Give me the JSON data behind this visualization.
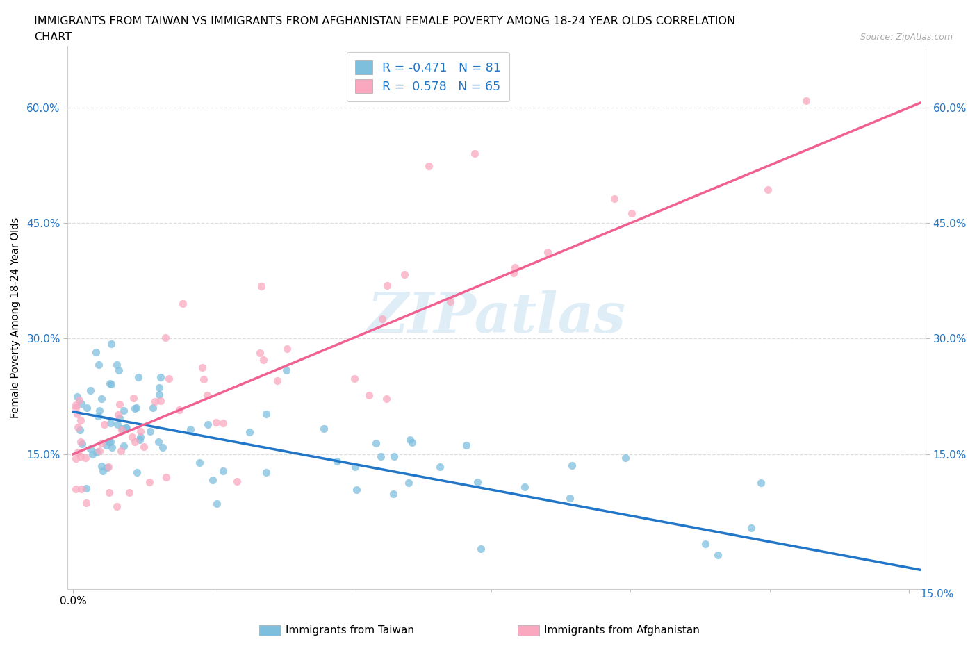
{
  "title_line1": "IMMIGRANTS FROM TAIWAN VS IMMIGRANTS FROM AFGHANISTAN FEMALE POVERTY AMONG 18-24 YEAR OLDS CORRELATION",
  "title_line2": "CHART",
  "source": "Source: ZipAtlas.com",
  "ylabel": "Female Poverty Among 18-24 Year Olds",
  "xlim": [
    0.0,
    0.15
  ],
  "ylim": [
    0.0,
    0.65
  ],
  "ytick_labels": [
    "15.0%",
    "30.0%",
    "45.0%",
    "60.0%"
  ],
  "ytick_values": [
    0.15,
    0.3,
    0.45,
    0.6
  ],
  "taiwan_color": "#7fbfde",
  "afghanistan_color": "#f9a8c0",
  "taiwan_line_color": "#2176c7",
  "afghanistan_line_color": "#f06090",
  "taiwan_R": -0.471,
  "taiwan_N": 81,
  "afghanistan_R": 0.578,
  "afghanistan_N": 65,
  "legend_taiwan": "Immigrants from Taiwan",
  "legend_afghanistan": "Immigrants from Afghanistan",
  "watermark": "ZIPatlas",
  "tick_color": "#2176c7"
}
